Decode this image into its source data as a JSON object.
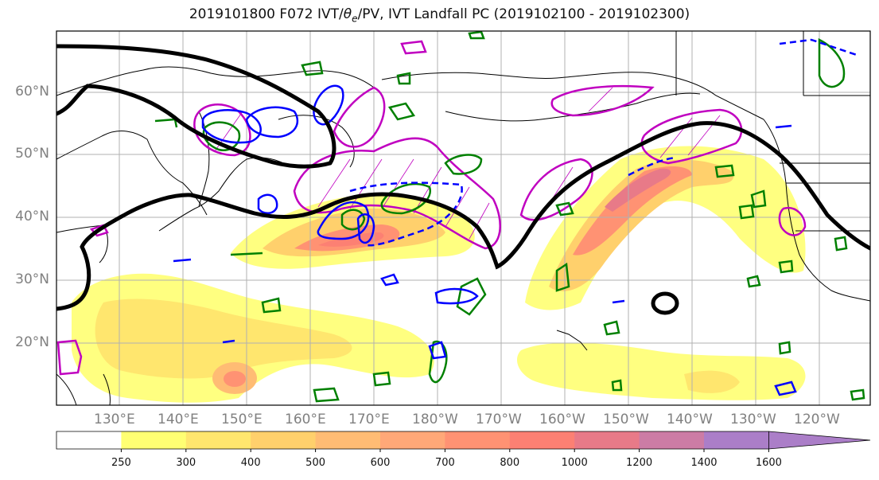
{
  "title": "2019101800 F072 IVT/θe/PV, IVT Landfall PC (2019102100 - 2019102300)",
  "title_parts": {
    "prefix": "2019101800 F072 IVT/",
    "theta": "θ",
    "theta_sub": "e",
    "suffix": "/PV, IVT Landfall PC (2019102100 - 2019102300)"
  },
  "lat_labels": [
    "60°N",
    "50°N",
    "40°N",
    "30°N",
    "20°N"
  ],
  "lon_labels": [
    "130°E",
    "140°E",
    "150°E",
    "160°E",
    "170°E",
    "180°W",
    "170°W",
    "160°W",
    "150°W",
    "140°W",
    "130°W",
    "120°W"
  ],
  "colorbar": {
    "ticks": [
      "250",
      "300",
      "400",
      "500",
      "600",
      "700",
      "800",
      "1000",
      "1200",
      "1400",
      "1600"
    ],
    "colors": [
      "#ffffff",
      "#ffff73",
      "#ffe66e",
      "#ffd06c",
      "#ffbc74",
      "#ffa878",
      "#ff9273",
      "#fc8073",
      "#e87a88",
      "#cc7ca5",
      "#ab7ec8"
    ],
    "extend": "max"
  },
  "colors": {
    "trough_contour": "#000000",
    "pv_contour": "#0000ff",
    "theta_contour": "#008000",
    "landfall_pc": "#c000c0",
    "coast": "#000000",
    "grid": "#b0b0b0"
  }
}
